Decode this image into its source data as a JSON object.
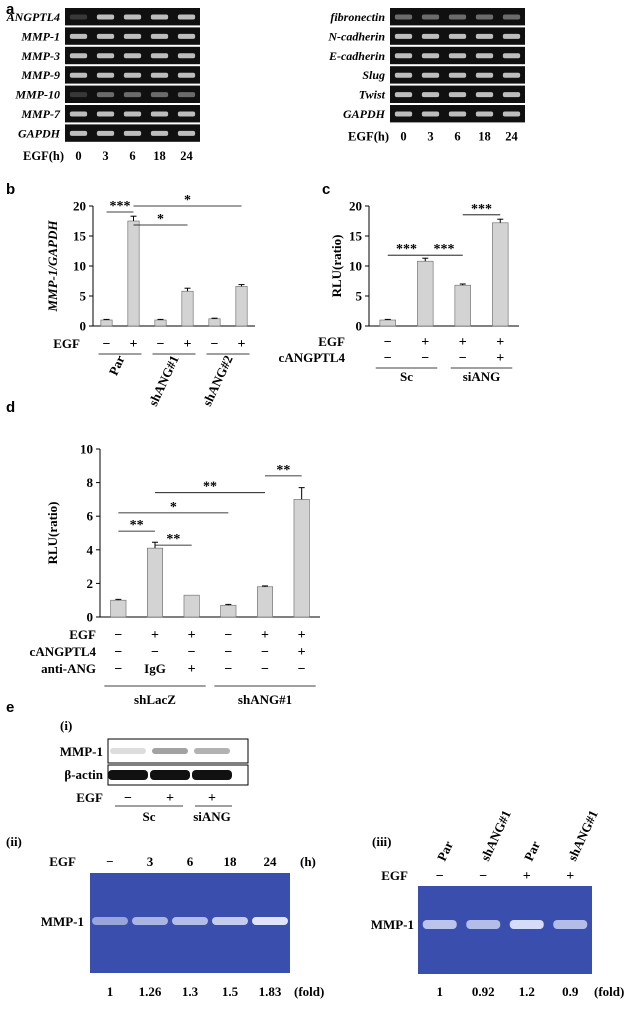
{
  "panel_labels": {
    "a": "a",
    "b": "b",
    "c": "c",
    "d": "d",
    "e": "e"
  },
  "panel_a": {
    "left_genes": [
      "ANGPTL4",
      "MMP-1",
      "MMP-3",
      "MMP-9",
      "MMP-10",
      "MMP-7",
      "GAPDH"
    ],
    "right_genes": [
      "fibronectin",
      "N-cadherin",
      "E-cadherin",
      "Slug",
      "Twist",
      "GAPDH"
    ],
    "time_label": "EGF(h)",
    "times": [
      "0",
      "3",
      "6",
      "18",
      "24"
    ],
    "gel_color": "#101010",
    "band_color": "#dcdcdc"
  },
  "panel_b": {
    "ylabel": "MMP-1/GAPDH",
    "row_label": "EGF",
    "egf": [
      "−",
      "+",
      "−",
      "+",
      "−",
      "+"
    ],
    "groups": [
      "Par",
      "shANG#1",
      "shANG#2"
    ],
    "sig": [
      "***",
      "*",
      "*"
    ]
  },
  "panel_c": {
    "ylabel": "RLU(ratio)",
    "row_labels": [
      "EGF",
      "cANGPTL4"
    ],
    "egf": [
      "−",
      "+",
      "+",
      "+"
    ],
    "cangptl4": [
      "−",
      "−",
      "−",
      "+"
    ],
    "groups": [
      "Sc",
      "siANG"
    ],
    "sig": [
      "***",
      "***",
      "***"
    ]
  },
  "panel_d": {
    "ylabel": "RLU(ratio)",
    "row_labels": [
      "EGF",
      "cANGPTL4",
      "anti-ANG"
    ],
    "egf": [
      "−",
      "+",
      "+",
      "−",
      "+",
      "+"
    ],
    "cangptl4": [
      "−",
      "−",
      "−",
      "−",
      "−",
      "+"
    ],
    "anti_ang": [
      "−",
      "IgG",
      "+",
      "−",
      "−",
      "−"
    ],
    "groups": [
      "shLacZ",
      "shANG#1"
    ],
    "sig": [
      "**",
      "**",
      "*",
      "**",
      "**"
    ]
  },
  "panel_e": {
    "sub_i": "(i)",
    "sub_ii": "(ii)",
    "sub_iii": "(iii)",
    "wb_labels": [
      "MMP-1",
      "β-actin"
    ],
    "wb_egf_label": "EGF",
    "wb_egf": [
      "−",
      "+",
      "+"
    ],
    "wb_groups": [
      "Sc",
      "siANG"
    ],
    "ii_egf_label": "EGF",
    "ii_times": [
      "−",
      "3",
      "6",
      "18",
      "24"
    ],
    "ii_unit": "(h)",
    "ii_band_label": "MMP-1",
    "ii_fold": [
      "1",
      "1.26",
      "1.3",
      "1.5",
      "1.83"
    ],
    "ii_fold_unit": "(fold)",
    "iii_lanes": [
      "Par",
      "shANG#1",
      "Par",
      "shANG#1"
    ],
    "iii_egf_label": "EGF",
    "iii_egf": [
      "−",
      "−",
      "+",
      "+"
    ],
    "iii_band_label": "MMP-1",
    "iii_fold": [
      "1",
      "0.92",
      "1.2",
      "0.9"
    ],
    "iii_fold_unit": "(fold)",
    "zymo_color": "#3a4eae"
  },
  "chart_data": [
    {
      "type": "bar",
      "panel": "b",
      "title": "",
      "xlabel": "",
      "ylabel": "MMP-1/GAPDH",
      "ylim": [
        0,
        20
      ],
      "yticks": [
        0,
        5,
        10,
        15,
        20
      ],
      "categories": [
        "Par −",
        "Par +",
        "shANG#1 −",
        "shANG#1 +",
        "shANG#2 −",
        "shANG#2 +"
      ],
      "values": [
        1.0,
        17.5,
        1.0,
        5.8,
        1.2,
        6.6
      ],
      "errors": [
        0.1,
        0.8,
        0.1,
        0.5,
        0.1,
        0.3
      ],
      "bar_color": "#d3d3d3"
    },
    {
      "type": "bar",
      "panel": "c",
      "title": "",
      "xlabel": "",
      "ylabel": "RLU(ratio)",
      "ylim": [
        0,
        20
      ],
      "yticks": [
        0,
        5,
        10,
        15,
        20
      ],
      "categories": [
        "Sc EGF−",
        "Sc EGF+",
        "siANG EGF+",
        "siANG EGF+ cANGPTL4+"
      ],
      "values": [
        1.0,
        10.8,
        6.8,
        17.2
      ],
      "errors": [
        0.1,
        0.5,
        0.2,
        0.6
      ],
      "bar_color": "#d3d3d3"
    },
    {
      "type": "bar",
      "panel": "d",
      "title": "",
      "xlabel": "",
      "ylabel": "RLU(ratio)",
      "ylim": [
        0,
        10
      ],
      "yticks": [
        0,
        2,
        4,
        6,
        8,
        10
      ],
      "categories": [
        "shLacZ −",
        "shLacZ EGF+ IgG",
        "shLacZ EGF+ anti-ANG",
        "shANG#1 −",
        "shANG#1 EGF+",
        "shANG#1 EGF+ cANGPTL4"
      ],
      "values": [
        1.0,
        4.1,
        1.3,
        0.7,
        1.8,
        7.0
      ],
      "errors": [
        0.05,
        0.35,
        0.0,
        0.05,
        0.05,
        0.7
      ],
      "bar_color": "#d3d3d3"
    }
  ]
}
